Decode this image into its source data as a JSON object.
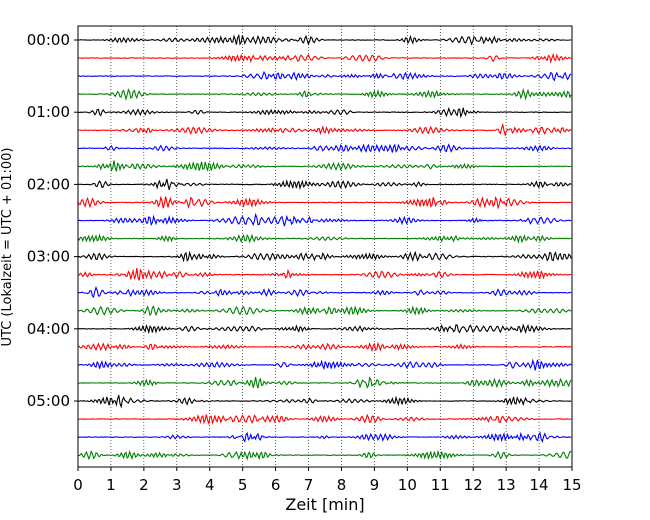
{
  "chart_data": {
    "type": "line",
    "title": "",
    "xlabel": "Zeit  [min]",
    "ylabel": "UTC (Lokalzeit = UTC + 01:00)",
    "xlim": [
      0,
      15
    ],
    "x_ticks": [
      "0",
      "1",
      "2",
      "3",
      "4",
      "5",
      "6",
      "7",
      "8",
      "9",
      "10",
      "11",
      "12",
      "13",
      "14",
      "15"
    ],
    "y_ticks": [
      "00:00",
      "01:00",
      "02:00",
      "03:00",
      "04:00",
      "05:00"
    ],
    "grid": "vertical dotted at each minute",
    "trace_interval_min": 15,
    "trace_count": 24,
    "colors": [
      "#000000",
      "#ff0000",
      "#0000ff",
      "#007f00"
    ]
  }
}
